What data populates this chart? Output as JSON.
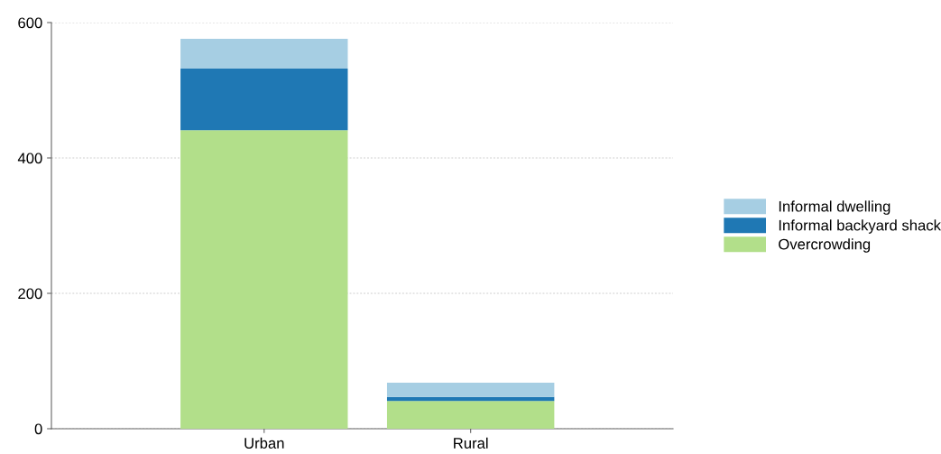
{
  "chart_data": {
    "type": "bar",
    "stacked": true,
    "categories": [
      "Urban",
      "Rural"
    ],
    "series": [
      {
        "name": "Overcrowding",
        "color": "#b2df8a",
        "values": [
          441,
          41
        ]
      },
      {
        "name": "Informal backyard shack",
        "color": "#1f78b4",
        "values": [
          91,
          6
        ]
      },
      {
        "name": "Informal dwelling",
        "color": "#a6cee3",
        "values": [
          44,
          21
        ]
      }
    ],
    "ylim": [
      0,
      600
    ],
    "yticks": [
      0,
      200,
      400,
      600
    ],
    "grid": "y",
    "legend": "right"
  }
}
